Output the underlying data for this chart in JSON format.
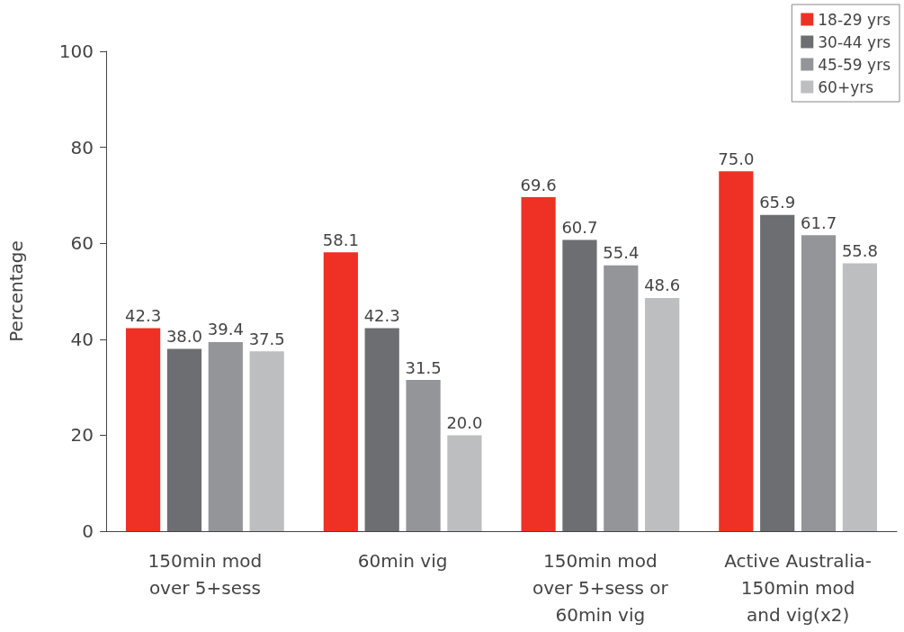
{
  "chart_data": {
    "type": "bar",
    "ylabel": "Percentage",
    "categories": [
      "150min mod\nover 5+sess",
      "60min vig",
      "150min mod\nover 5+sess or\n60min vig",
      "Active Australia-\n150min mod\nand vig(x2)"
    ],
    "series": [
      {
        "name": "18-29 yrs",
        "color": "#ee3124",
        "values": [
          42.3,
          58.1,
          69.6,
          75
        ],
        "value_labels": [
          "42.3",
          "58.1",
          "69.6",
          "75.0"
        ]
      },
      {
        "name": "30-44 yrs",
        "color": "#6d6e71",
        "values": [
          38,
          42.3,
          60.7,
          65.9
        ],
        "value_labels": [
          "38.0",
          "42.3",
          "60.7",
          "65.9"
        ]
      },
      {
        "name": "45-59 yrs",
        "color": "#939598",
        "values": [
          39.4,
          31.5,
          55.4,
          61.7
        ],
        "value_labels": [
          "39.4",
          "31.5",
          "55.4",
          "61.7"
        ]
      },
      {
        "name": "60+yrs",
        "color": "#bcbec0",
        "values": [
          37.5,
          20,
          48.6,
          55.8
        ],
        "value_labels": [
          "37.5",
          "20.0",
          "48.6",
          "55.8"
        ]
      }
    ],
    "ylim": [
      0,
      100
    ],
    "yticks": [
      0,
      20,
      40,
      60,
      80,
      100
    ],
    "grid": false,
    "legend": "top right"
  }
}
